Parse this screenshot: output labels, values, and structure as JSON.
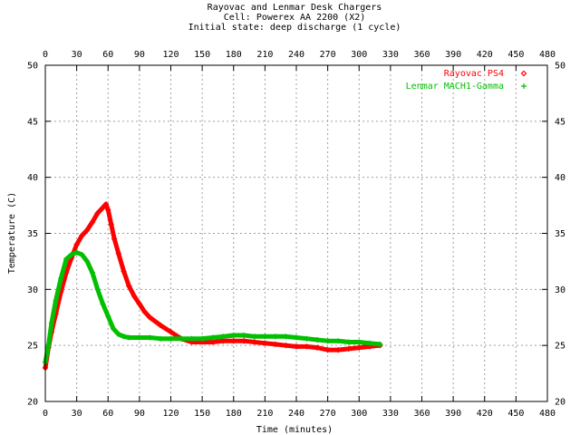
{
  "chart_data": {
    "type": "scatter",
    "title_lines": [
      "Rayovac and Lenmar Desk Chargers",
      "Cell: Powerex AA 2200 (X2)",
      "Initial state: deep discharge (1 cycle)"
    ],
    "xlabel": "Time (minutes)",
    "ylabel": "Temperature (C)",
    "xlim": [
      0,
      480
    ],
    "ylim": [
      20,
      50
    ],
    "x_ticks": [
      0,
      30,
      60,
      90,
      120,
      150,
      180,
      210,
      240,
      270,
      300,
      330,
      360,
      390,
      420,
      450,
      480
    ],
    "y_ticks": [
      20,
      25,
      30,
      35,
      40,
      45,
      50
    ],
    "grid": true,
    "legend_position": "top-right",
    "series": [
      {
        "name": "Rayovac PS4",
        "color": "#ff0000",
        "marker": "diamond",
        "x": [
          0,
          3,
          6,
          10,
          15,
          20,
          25,
          30,
          35,
          40,
          45,
          50,
          55,
          58,
          60,
          63,
          66,
          70,
          75,
          80,
          85,
          90,
          95,
          100,
          110,
          120,
          130,
          140,
          150,
          160,
          170,
          180,
          190,
          200,
          210,
          220,
          230,
          240,
          250,
          260,
          270,
          280,
          290,
          300,
          310,
          320
        ],
        "y": [
          23.0,
          24.8,
          26.2,
          27.8,
          29.8,
          31.5,
          32.8,
          34.0,
          34.8,
          35.3,
          36.0,
          36.8,
          37.3,
          37.6,
          37.1,
          35.8,
          34.5,
          33.2,
          31.6,
          30.3,
          29.4,
          28.7,
          28.0,
          27.5,
          26.8,
          26.2,
          25.6,
          25.3,
          25.3,
          25.3,
          25.4,
          25.4,
          25.4,
          25.3,
          25.2,
          25.1,
          25.0,
          24.9,
          24.9,
          24.8,
          24.6,
          24.6,
          24.7,
          24.8,
          24.9,
          25.0
        ]
      },
      {
        "name": "Lenmar MACH1-Gamma",
        "color": "#00c000",
        "marker": "plus",
        "x": [
          0,
          3,
          6,
          10,
          15,
          20,
          25,
          30,
          35,
          40,
          45,
          50,
          55,
          60,
          65,
          70,
          75,
          80,
          90,
          100,
          110,
          120,
          130,
          140,
          150,
          160,
          170,
          180,
          190,
          200,
          210,
          220,
          230,
          240,
          250,
          260,
          270,
          280,
          290,
          300,
          310,
          320
        ],
        "y": [
          23.5,
          25.0,
          27.0,
          29.0,
          31.0,
          32.7,
          33.1,
          33.3,
          33.1,
          32.5,
          31.5,
          30.0,
          28.7,
          27.6,
          26.5,
          26.0,
          25.8,
          25.7,
          25.7,
          25.7,
          25.6,
          25.6,
          25.6,
          25.6,
          25.6,
          25.7,
          25.8,
          25.9,
          25.9,
          25.8,
          25.8,
          25.8,
          25.8,
          25.7,
          25.6,
          25.5,
          25.4,
          25.4,
          25.3,
          25.3,
          25.2,
          25.1
        ]
      }
    ]
  }
}
